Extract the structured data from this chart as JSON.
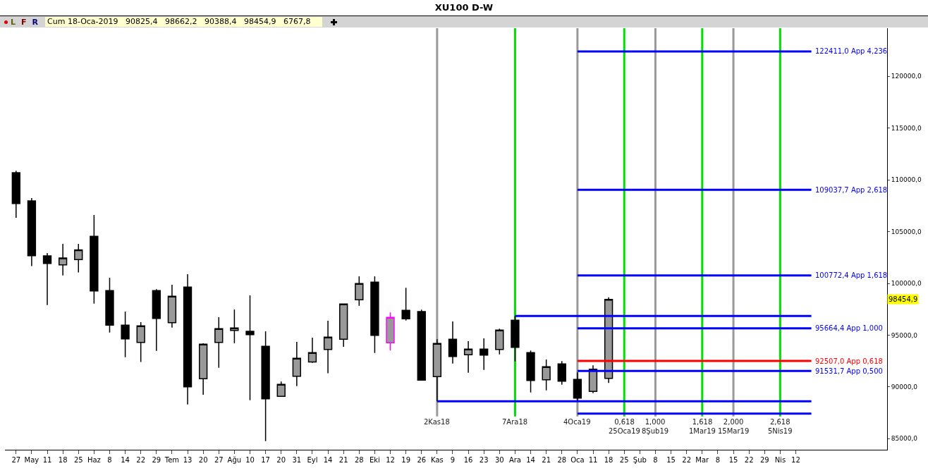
{
  "chart_data": {
    "type": "candlestick",
    "title": "XU100 D-W",
    "x": [
      "2018-04-27",
      "2018-05-04",
      "2018-05-11",
      "2018-05-18",
      "2018-05-25",
      "2018-06-01",
      "2018-06-08",
      "2018-06-15",
      "2018-06-22",
      "2018-06-29",
      "2018-07-06",
      "2018-07-13",
      "2018-07-20",
      "2018-07-27",
      "2018-08-03",
      "2018-08-10",
      "2018-08-17",
      "2018-08-24",
      "2018-08-31",
      "2018-09-07",
      "2018-09-14",
      "2018-09-21",
      "2018-09-28",
      "2018-10-05",
      "2018-10-12",
      "2018-10-19",
      "2018-10-26",
      "2018-11-02",
      "2018-11-09",
      "2018-11-16",
      "2018-11-23",
      "2018-11-30",
      "2018-12-07",
      "2018-12-14",
      "2018-12-21",
      "2018-12-28",
      "2019-01-04",
      "2019-01-11",
      "2019-01-18"
    ],
    "ohlc": [
      [
        110690,
        110870,
        106330,
        107720
      ],
      [
        107970,
        108240,
        101660,
        102680
      ],
      [
        102660,
        102930,
        97910,
        101930
      ],
      [
        101790,
        103810,
        100770,
        102450
      ],
      [
        102290,
        103810,
        101050,
        103240
      ],
      [
        104540,
        106600,
        98050,
        99270
      ],
      [
        99300,
        100550,
        95250,
        95960
      ],
      [
        95960,
        97280,
        92870,
        94640
      ],
      [
        94300,
        96260,
        92400,
        95890
      ],
      [
        99300,
        99440,
        93480,
        96620
      ],
      [
        96210,
        99860,
        95730,
        98750
      ],
      [
        99640,
        100890,
        88310,
        90010
      ],
      [
        90790,
        94210,
        89240,
        94120
      ],
      [
        94300,
        96730,
        91850,
        95620
      ],
      [
        95460,
        97480,
        94210,
        95690
      ],
      [
        95370,
        98840,
        88720,
        95050
      ],
      [
        93920,
        95370,
        84770,
        88850
      ],
      [
        89090,
        90520,
        89090,
        90240
      ],
      [
        91030,
        94350,
        90080,
        92760
      ],
      [
        92400,
        94760,
        92330,
        93310
      ],
      [
        93620,
        96390,
        91310,
        94810
      ],
      [
        94600,
        98010,
        93870,
        98010
      ],
      [
        98410,
        100680,
        97840,
        99980
      ],
      [
        100120,
        100680,
        93280,
        94980
      ],
      [
        94260,
        97190,
        93510,
        96710
      ],
      [
        97390,
        99570,
        96410,
        96580
      ],
      [
        97280,
        97460,
        90650,
        90650
      ],
      [
        90990,
        94600,
        88610,
        94190
      ],
      [
        94600,
        96320,
        92260,
        92940
      ],
      [
        93100,
        94420,
        91370,
        93650
      ],
      [
        93650,
        94690,
        91650,
        93080
      ],
      [
        93620,
        95620,
        93140,
        95490
      ],
      [
        96440,
        96850,
        92460,
        93820
      ],
      [
        93310,
        93510,
        89470,
        90620
      ],
      [
        90690,
        92650,
        89670,
        91950
      ],
      [
        92220,
        92490,
        90220,
        90560
      ],
      [
        90720,
        91400,
        88560,
        88920
      ],
      [
        89560,
        92080,
        89400,
        91710
      ],
      [
        90825.4,
        98662.2,
        90388.4,
        98454.9
      ]
    ],
    "colors": [
      "#000000",
      "#000000",
      "#000000",
      "#000000",
      "#000000",
      "#000000",
      "#000000",
      "#000000",
      "#000000",
      "#000000",
      "#000000",
      "#000000",
      "#000000",
      "#000000",
      "#000000",
      "#000000",
      "#000000",
      "#000000",
      "#000000",
      "#000000",
      "#000000",
      "#000000",
      "#000000",
      "#000000",
      "#ff00ff",
      "#000000",
      "#000000",
      "#000000",
      "#000000",
      "#000000",
      "#000000",
      "#000000",
      "#000000",
      "#000000",
      "#000000",
      "#000000",
      "#000000",
      "#000000",
      "#000000"
    ],
    "series": [
      {
        "type": "line",
        "name": "122411,0 App 4,236",
        "color": "#0000ff",
        "x": [
          "2019-01-04",
          "2019-04-19"
        ],
        "values": [
          122411.0,
          122411.0
        ]
      },
      {
        "type": "line",
        "name": "109037,7 App 2,618",
        "color": "#0000ff",
        "x": [
          "2019-01-04",
          "2019-04-19"
        ],
        "values": [
          109037.7,
          109037.7
        ]
      },
      {
        "type": "line",
        "name": "100772,4 App 1,618",
        "color": "#0000ff",
        "x": [
          "2019-01-04",
          "2019-04-19"
        ],
        "values": [
          100772.4,
          100772.4
        ]
      },
      {
        "type": "line",
        "color": "#0000ff",
        "x": [
          "2018-12-07",
          "2019-04-19"
        ],
        "values": [
          96850,
          96850
        ]
      },
      {
        "type": "line",
        "name": "95664,4 App 1,000",
        "color": "#0000ff",
        "x": [
          "2019-01-04",
          "2019-04-19"
        ],
        "values": [
          95664.4,
          95664.4
        ]
      },
      {
        "type": "line",
        "name": "92507,0 App 0,618",
        "color": "#ff0000",
        "x": [
          "2019-01-04",
          "2019-04-19"
        ],
        "values": [
          92507.0,
          92507.0
        ]
      },
      {
        "type": "line",
        "name": "91531,7 App 0,500",
        "color": "#0000ff",
        "x": [
          "2019-01-04",
          "2019-04-19"
        ],
        "values": [
          91531.7,
          91531.7
        ]
      },
      {
        "type": "line",
        "color": "#0000ff",
        "x": [
          "2018-11-02",
          "2019-04-19"
        ],
        "values": [
          88610,
          88610
        ]
      },
      {
        "type": "line",
        "color": "#0000ff",
        "x": [
          "2019-01-04",
          "2019-04-19"
        ],
        "values": [
          87420,
          87420
        ]
      }
    ],
    "ref_lines": [
      {
        "axis": "x",
        "value": "2018-11-02",
        "label": "2Kas18",
        "color": "#999999"
      },
      {
        "axis": "x",
        "value": "2018-12-07",
        "label": "7Ara18",
        "color": "#00e000"
      },
      {
        "axis": "x",
        "value": "2019-01-04",
        "label": "4Oca19",
        "color": "#999999"
      },
      {
        "axis": "x",
        "value": "2019-01-25",
        "label": "0,618\n25Oca19",
        "color": "#00e000"
      },
      {
        "axis": "x",
        "value": "2019-02-08",
        "label": "1,000\n8Şub19",
        "color": "#999999"
      },
      {
        "axis": "x",
        "value": "2019-03-01",
        "label": "1,618\n1Mar19",
        "color": "#00e000"
      },
      {
        "axis": "x",
        "value": "2019-03-15",
        "label": "2,000\n15Mar19",
        "color": "#999999"
      },
      {
        "axis": "x",
        "value": "2019-04-05",
        "label": "2,618\n5Nis19",
        "color": "#00e000"
      }
    ],
    "annotations": [
      "L",
      "F",
      "R",
      "Cum 18-Oca-2019   90825,4   98662,2   90388,4   98454,9   6767,8",
      {
        "text": "98454,9",
        "y": 98454.9
      }
    ],
    "xlim": [
      "2018-04-22",
      "2019-05-23"
    ],
    "xticks": [
      {
        "value": "2018-04-27",
        "label": "27"
      },
      {
        "value": "2018-05-04",
        "label": "May"
      },
      {
        "value": "2018-05-11",
        "label": "11"
      },
      {
        "value": "2018-05-18",
        "label": "18"
      },
      {
        "value": "2018-05-25",
        "label": "25"
      },
      {
        "value": "2018-06-01",
        "label": "Haz"
      },
      {
        "value": "2018-06-08",
        "label": "8"
      },
      {
        "value": "2018-06-15",
        "label": "14"
      },
      {
        "value": "2018-06-22",
        "label": "22"
      },
      {
        "value": "2018-06-29",
        "label": "29"
      },
      {
        "value": "2018-07-06",
        "label": "Tem"
      },
      {
        "value": "2018-07-13",
        "label": "13"
      },
      {
        "value": "2018-07-20",
        "label": "20"
      },
      {
        "value": "2018-07-27",
        "label": "27"
      },
      {
        "value": "2018-08-03",
        "label": "Ağu"
      },
      {
        "value": "2018-08-10",
        "label": "10"
      },
      {
        "value": "2018-08-17",
        "label": "17"
      },
      {
        "value": "2018-08-24",
        "label": "20"
      },
      {
        "value": "2018-08-31",
        "label": "31"
      },
      {
        "value": "2018-09-07",
        "label": "Eyl"
      },
      {
        "value": "2018-09-14",
        "label": "14"
      },
      {
        "value": "2018-09-21",
        "label": "21"
      },
      {
        "value": "2018-09-28",
        "label": "28"
      },
      {
        "value": "2018-10-05",
        "label": "Eki"
      },
      {
        "value": "2018-10-12",
        "label": "12"
      },
      {
        "value": "2018-10-19",
        "label": "19"
      },
      {
        "value": "2018-10-26",
        "label": "26"
      },
      {
        "value": "2018-11-02",
        "label": "Kas"
      },
      {
        "value": "2018-11-09",
        "label": "9"
      },
      {
        "value": "2018-11-16",
        "label": "16"
      },
      {
        "value": "2018-11-23",
        "label": "23"
      },
      {
        "value": "2018-11-30",
        "label": "30"
      },
      {
        "value": "2018-12-07",
        "label": "Ara"
      },
      {
        "value": "2018-12-14",
        "label": "14"
      },
      {
        "value": "2018-12-21",
        "label": "21"
      },
      {
        "value": "2018-12-28",
        "label": "28"
      },
      {
        "value": "2019-01-04",
        "label": "Oca"
      },
      {
        "value": "2019-01-11",
        "label": "11"
      },
      {
        "value": "2019-01-18",
        "label": "18"
      },
      {
        "value": "2019-01-25",
        "label": "25"
      },
      {
        "value": "2019-02-01",
        "label": "Şub"
      },
      {
        "value": "2019-02-08",
        "label": "8"
      },
      {
        "value": "2019-02-15",
        "label": "15"
      },
      {
        "value": "2019-02-22",
        "label": "22"
      },
      {
        "value": "2019-03-01",
        "label": "Mar"
      },
      {
        "value": "2019-03-08",
        "label": "8"
      },
      {
        "value": "2019-03-15",
        "label": "15"
      },
      {
        "value": "2019-03-22",
        "label": "22"
      },
      {
        "value": "2019-03-29",
        "label": "29"
      },
      {
        "value": "2019-04-05",
        "label": "Nis"
      },
      {
        "value": "2019-04-12",
        "label": "12"
      }
    ],
    "ylim": [
      83930,
      124650
    ],
    "yticks": [
      {
        "value": 85000,
        "label": "85000,0"
      },
      {
        "value": 90000,
        "label": "90000,0"
      },
      {
        "value": 95000,
        "label": "95000,0"
      },
      {
        "value": 100000,
        "label": "100000,0"
      },
      {
        "value": 105000,
        "label": "105000,0"
      },
      {
        "value": 110000,
        "label": "110000,0"
      },
      {
        "value": 115000,
        "label": "115000,0"
      },
      {
        "value": 120000,
        "label": "120000,0"
      }
    ],
    "grid": false,
    "marker": "none",
    "line_style": "solid"
  }
}
